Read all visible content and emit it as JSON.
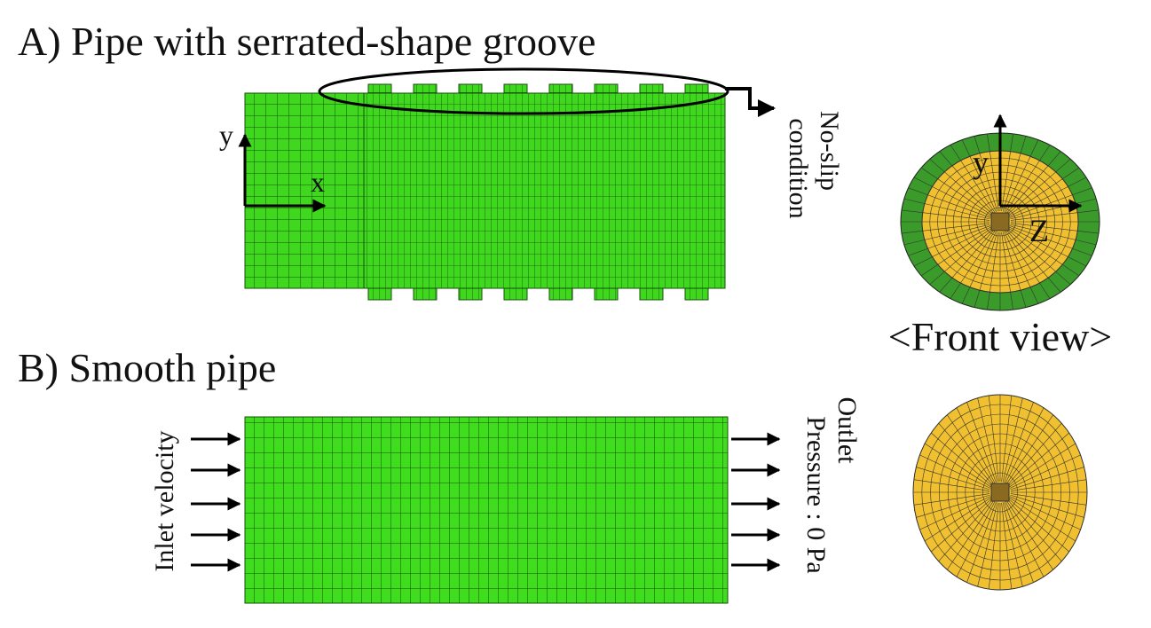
{
  "panel_a": {
    "title": "A) Pipe with serrated-shape groove",
    "annotation": [
      "No-slip",
      "condition"
    ],
    "axes": {
      "y": "y",
      "x": "x"
    }
  },
  "front_view": {
    "label": "<Front view>",
    "axes": {
      "y": "y",
      "z": "Z"
    }
  },
  "panel_b": {
    "title": "B) Smooth pipe",
    "inlet": "Inlet velocity",
    "outlet": [
      "Outlet",
      "Pressure : 0 Pa"
    ]
  }
}
